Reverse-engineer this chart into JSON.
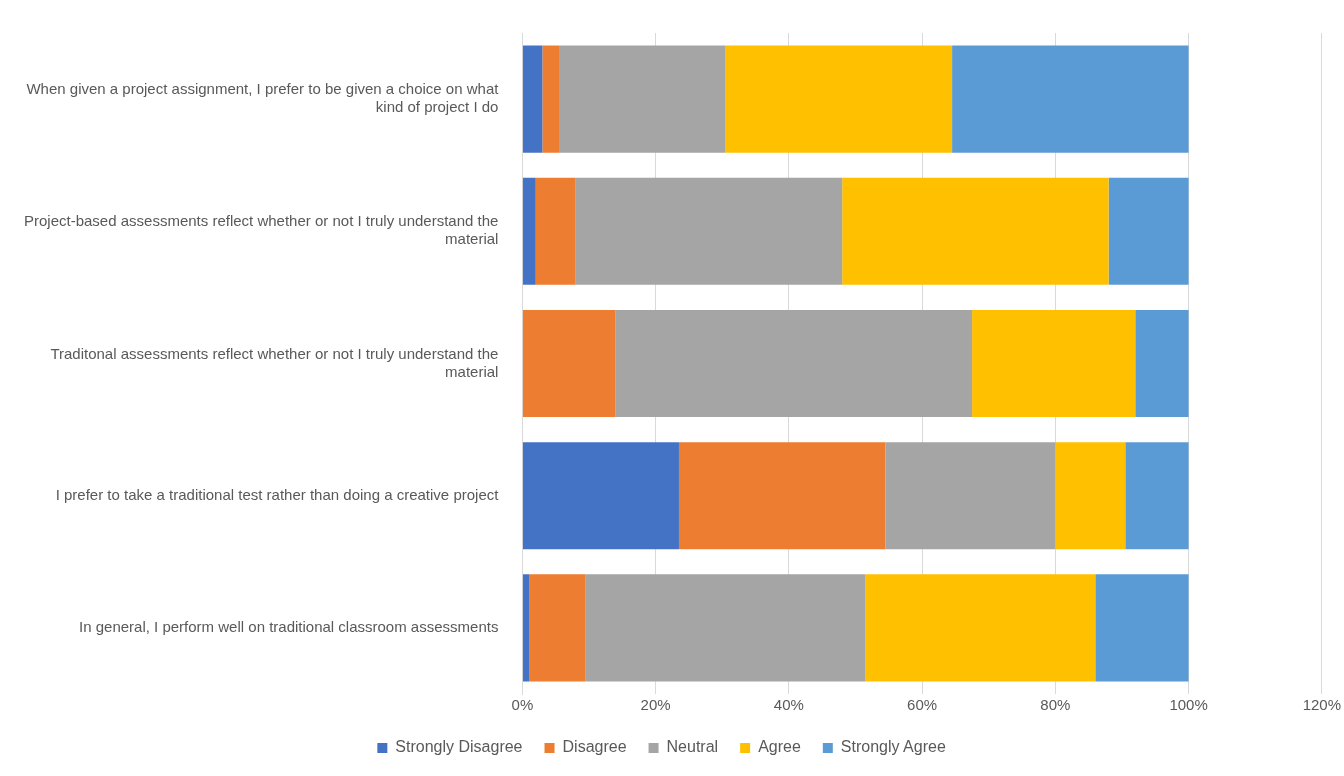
{
  "chart_data": {
    "type": "bar",
    "orientation": "horizontal",
    "stacked": true,
    "categories": [
      "When given a project assignment, I prefer to be given a choice on what kind of project I do",
      "Project-based assessments reflect whether or not I truly understand the material",
      "Traditonal assessments reflect whether or not I truly understand the material",
      "I prefer to take a traditional test rather than doing a creative project",
      "In general, I perform well on traditional classroom assessments"
    ],
    "series": [
      {
        "name": "Strongly Disagree",
        "color": "#4472c4",
        "values": [
          3,
          2,
          0,
          23.5,
          1
        ]
      },
      {
        "name": "Disagree",
        "color": "#ed7d31",
        "values": [
          2.5,
          6,
          14,
          31,
          8.5
        ]
      },
      {
        "name": "Neutral",
        "color": "#a5a5a5",
        "values": [
          25,
          40,
          53.5,
          25.5,
          42
        ]
      },
      {
        "name": "Agree",
        "color": "#ffc000",
        "values": [
          34,
          40,
          24.5,
          10.5,
          34.5
        ]
      },
      {
        "name": "Strongly Agree",
        "color": "#5b9bd5",
        "values": [
          35.5,
          12,
          8,
          9.5,
          14
        ]
      }
    ],
    "xlim": [
      0,
      120
    ],
    "xticks": [
      {
        "value": 0,
        "label": "0%"
      },
      {
        "value": 20,
        "label": "20%"
      },
      {
        "value": 40,
        "label": "40%"
      },
      {
        "value": 60,
        "label": "60%"
      },
      {
        "value": 80,
        "label": "80%"
      },
      {
        "value": 100,
        "label": "100%"
      },
      {
        "value": 120,
        "label": "120%"
      }
    ],
    "grid": "x",
    "legend": "bottom"
  }
}
